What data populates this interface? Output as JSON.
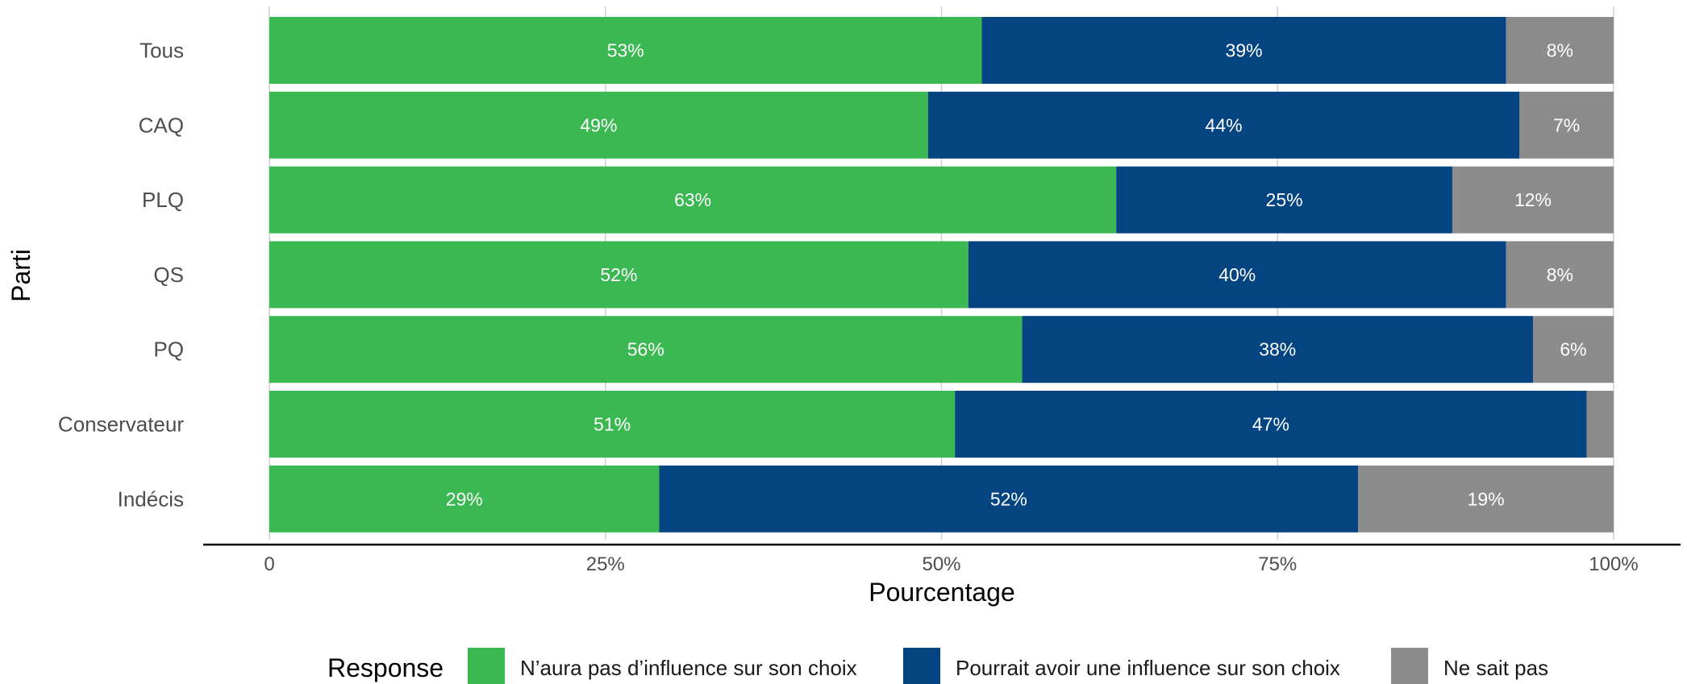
{
  "chart_data": {
    "type": "bar",
    "orientation": "horizontal",
    "stacked": true,
    "categories": [
      "Tous",
      "CAQ",
      "PLQ",
      "QS",
      "PQ",
      "Conservateur",
      "Indécis"
    ],
    "series": [
      {
        "name": "N’aura pas d’influence sur son choix",
        "color": "#3cb853",
        "values": [
          53,
          49,
          63,
          52,
          56,
          51,
          29
        ],
        "labels": [
          "53%",
          "49%",
          "63%",
          "52%",
          "56%",
          "51%",
          "29%"
        ]
      },
      {
        "name": "Pourrait avoir une influence sur son choix",
        "color": "#044481",
        "values": [
          39,
          44,
          25,
          40,
          38,
          47,
          52
        ],
        "labels": [
          "39%",
          "44%",
          "25%",
          "40%",
          "38%",
          "47%",
          "52%"
        ]
      },
      {
        "name": "Ne sait pas",
        "color": "#8c8c8c",
        "values": [
          8,
          7,
          12,
          8,
          6,
          2,
          19
        ],
        "labels": [
          "8%",
          "7%",
          "12%",
          "8%",
          "6%",
          "",
          "19%"
        ]
      }
    ],
    "xlim": [
      0,
      100
    ],
    "xticks": [
      0,
      25,
      50,
      75,
      100
    ],
    "xtick_labels": [
      "0",
      "25%",
      "50%",
      "75%",
      "100%"
    ],
    "xlabel": "Pourcentage",
    "ylabel": "Parti",
    "grid": true,
    "legend": {
      "title": "Response",
      "position": "bottom"
    }
  }
}
